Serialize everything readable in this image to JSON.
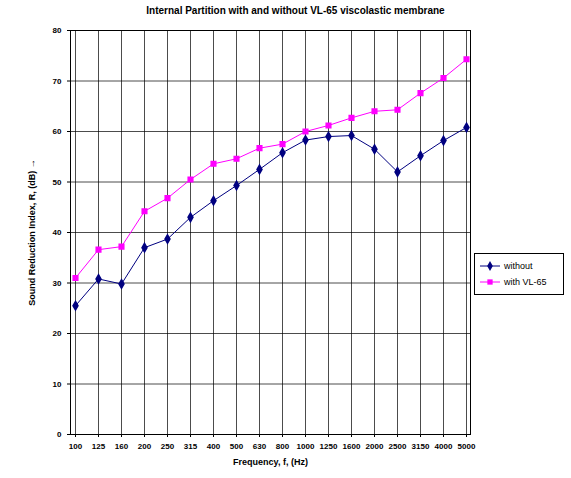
{
  "chart_data": {
    "type": "line",
    "title": "Internal Partition with and without VL-65 viscolastic membrane",
    "x_label": "Frequency, f, (Hz)",
    "y_label": "Sound Reduction Index, R, (dB)",
    "categories": [
      "100",
      "125",
      "160",
      "200",
      "250",
      "315",
      "400",
      "500",
      "630",
      "800",
      "1000",
      "1250",
      "1600",
      "2000",
      "2500",
      "3150",
      "4000",
      "5000"
    ],
    "series": [
      {
        "name": "without",
        "color": "#000080",
        "marker": "diamond",
        "values": [
          25.5,
          30.8,
          29.8,
          37,
          38.7,
          43,
          46.3,
          49.3,
          52.5,
          55.8,
          58.3,
          59,
          59.2,
          56.5,
          52,
          55.2,
          58.2,
          60.8
        ]
      },
      {
        "name": "with VL-65",
        "color": "#ff00ff",
        "marker": "square",
        "values": [
          31,
          36.6,
          37.2,
          44.2,
          46.8,
          50.5,
          53.6,
          54.6,
          56.7,
          57.5,
          60,
          61.2,
          62.7,
          64,
          64.3,
          67.6,
          70.6,
          74.3
        ]
      }
    ],
    "ylim": [
      0,
      80
    ],
    "yticks": [
      0,
      10,
      20,
      30,
      40,
      50,
      60,
      70,
      80
    ],
    "grid": true,
    "legend": "right"
  }
}
